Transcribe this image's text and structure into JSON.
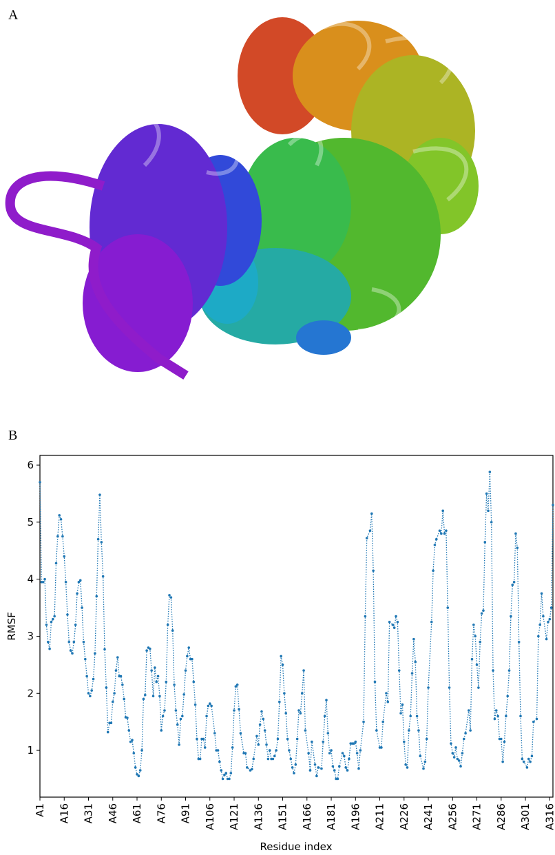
{
  "panel_a": {
    "label": "A"
  },
  "chart_data": {
    "type": "line",
    "panel_label": "B",
    "x_label": "Residue index",
    "y_label": "RMSF",
    "color": "#1f77b4",
    "line_style": "dotted",
    "markers": true,
    "grid": false,
    "xlim": [
      1,
      318
    ],
    "ylim": [
      0.18,
      6.17
    ],
    "yticks": [
      1,
      2,
      3,
      4,
      5,
      6
    ],
    "xticks": [
      {
        "value": 1,
        "label": "A1"
      },
      {
        "value": 16,
        "label": "A16"
      },
      {
        "value": 31,
        "label": "A31"
      },
      {
        "value": 46,
        "label": "A46"
      },
      {
        "value": 61,
        "label": "A61"
      },
      {
        "value": 76,
        "label": "A76"
      },
      {
        "value": 91,
        "label": "A91"
      },
      {
        "value": 106,
        "label": "A106"
      },
      {
        "value": 121,
        "label": "A121"
      },
      {
        "value": 136,
        "label": "A136"
      },
      {
        "value": 151,
        "label": "A151"
      },
      {
        "value": 166,
        "label": "A166"
      },
      {
        "value": 181,
        "label": "A181"
      },
      {
        "value": 196,
        "label": "A196"
      },
      {
        "value": 211,
        "label": "A211"
      },
      {
        "value": 226,
        "label": "A226"
      },
      {
        "value": 241,
        "label": "A241"
      },
      {
        "value": 256,
        "label": "A256"
      },
      {
        "value": 271,
        "label": "A271"
      },
      {
        "value": 286,
        "label": "A286"
      },
      {
        "value": 301,
        "label": "A301"
      },
      {
        "value": 316,
        "label": "A316"
      }
    ],
    "x": [
      1,
      2,
      3,
      4,
      5,
      6,
      7,
      8,
      9,
      10,
      11,
      12,
      13,
      14,
      15,
      16,
      17,
      18,
      19,
      20,
      21,
      22,
      23,
      24,
      25,
      26,
      27,
      28,
      29,
      30,
      31,
      32,
      33,
      34,
      35,
      36,
      37,
      38,
      39,
      40,
      41,
      42,
      43,
      44,
      45,
      46,
      47,
      48,
      49,
      50,
      51,
      52,
      53,
      54,
      55,
      56,
      57,
      58,
      59,
      60,
      61,
      62,
      63,
      64,
      65,
      66,
      67,
      68,
      69,
      70,
      71,
      72,
      73,
      74,
      75,
      76,
      77,
      78,
      79,
      80,
      81,
      82,
      83,
      84,
      85,
      86,
      87,
      88,
      89,
      90,
      91,
      92,
      93,
      94,
      95,
      96,
      97,
      98,
      99,
      100,
      101,
      102,
      103,
      104,
      105,
      106,
      107,
      109,
      110,
      111,
      112,
      113,
      114,
      115,
      116,
      117,
      118,
      119,
      120,
      121,
      122,
      123,
      124,
      125,
      127,
      128,
      129,
      131,
      132,
      133,
      135,
      136,
      137,
      138,
      139,
      140,
      141,
      142,
      143,
      144,
      145,
      146,
      147,
      148,
      149,
      150,
      151,
      152,
      153,
      154,
      155,
      156,
      157,
      158,
      159,
      160,
      161,
      162,
      163,
      164,
      165,
      167,
      168,
      169,
      171,
      172,
      173,
      175,
      176,
      177,
      178,
      179,
      180,
      181,
      182,
      183,
      184,
      185,
      186,
      188,
      189,
      190,
      191,
      192,
      193,
      194,
      195,
      196,
      197,
      198,
      199,
      201,
      202,
      203,
      205,
      206,
      207,
      208,
      209,
      211,
      212,
      213,
      215,
      216,
      217,
      219,
      220,
      221,
      222,
      223,
      224,
      225,
      226,
      227,
      228,
      229,
      230,
      231,
      232,
      233,
      234,
      235,
      236,
      238,
      239,
      240,
      241,
      243,
      244,
      245,
      246,
      248,
      249,
      250,
      251,
      252,
      253,
      254,
      255,
      256,
      257,
      258,
      259,
      260,
      261,
      262,
      263,
      264,
      266,
      267,
      268,
      269,
      270,
      271,
      272,
      273,
      274,
      275,
      276,
      277,
      278,
      279,
      280,
      281,
      282,
      283,
      284,
      285,
      286,
      287,
      288,
      289,
      290,
      291,
      292,
      293,
      294,
      295,
      296,
      297,
      298,
      299,
      300,
      302,
      303,
      304,
      305,
      306,
      308,
      309,
      310,
      311,
      312,
      314,
      315,
      316,
      317,
      318
    ],
    "values": [
      5.7,
      3.95,
      3.95,
      4.0,
      3.2,
      2.9,
      2.78,
      3.25,
      3.3,
      3.35,
      4.28,
      4.75,
      5.12,
      5.05,
      4.75,
      4.4,
      3.95,
      3.38,
      2.9,
      2.75,
      2.7,
      2.9,
      3.2,
      3.75,
      3.95,
      3.98,
      3.5,
      2.9,
      2.6,
      2.3,
      2.0,
      1.95,
      2.05,
      2.25,
      2.7,
      3.7,
      4.7,
      5.48,
      4.65,
      4.05,
      2.77,
      2.1,
      1.32,
      1.48,
      1.48,
      1.85,
      2.0,
      2.4,
      2.63,
      2.3,
      2.3,
      2.15,
      1.9,
      1.58,
      1.57,
      1.35,
      1.15,
      1.18,
      0.95,
      0.7,
      0.58,
      0.55,
      0.65,
      1.0,
      1.9,
      1.97,
      2.75,
      2.8,
      2.78,
      2.4,
      1.95,
      2.45,
      2.2,
      2.3,
      1.95,
      1.35,
      1.6,
      1.7,
      2.2,
      3.2,
      3.72,
      3.68,
      3.1,
      2.15,
      1.7,
      1.45,
      1.1,
      1.55,
      1.6,
      1.98,
      2.4,
      2.65,
      2.8,
      2.6,
      2.6,
      2.2,
      1.8,
      1.2,
      0.85,
      0.85,
      1.2,
      1.2,
      1.05,
      1.6,
      1.78,
      1.82,
      1.78,
      1.3,
      1.0,
      1.0,
      0.8,
      0.65,
      0.5,
      0.57,
      0.6,
      0.5,
      0.5,
      0.6,
      1.05,
      1.7,
      2.12,
      2.15,
      1.72,
      1.3,
      0.95,
      0.95,
      0.7,
      0.65,
      0.67,
      0.85,
      1.25,
      1.1,
      1.45,
      1.68,
      1.55,
      1.35,
      1.1,
      0.85,
      1.0,
      0.85,
      0.85,
      0.9,
      1.0,
      1.2,
      1.85,
      2.65,
      2.5,
      2.0,
      1.65,
      1.2,
      1.0,
      0.85,
      0.7,
      0.6,
      0.75,
      1.2,
      1.7,
      1.65,
      2.0,
      2.4,
      1.35,
      0.95,
      0.65,
      1.15,
      0.75,
      0.55,
      0.7,
      0.68,
      1.15,
      1.6,
      1.88,
      1.3,
      0.95,
      1.0,
      0.72,
      0.65,
      0.5,
      0.5,
      0.72,
      0.95,
      0.9,
      0.7,
      0.65,
      0.85,
      1.12,
      1.12,
      1.12,
      1.15,
      0.95,
      0.68,
      1.0,
      1.5,
      3.35,
      4.72,
      4.85,
      5.15,
      4.15,
      2.2,
      1.35,
      1.05,
      1.05,
      1.5,
      2.0,
      1.85,
      3.25,
      3.2,
      3.15,
      3.35,
      3.25,
      2.4,
      1.65,
      1.8,
      1.15,
      0.75,
      0.7,
      1.35,
      1.6,
      2.35,
      2.95,
      2.55,
      1.6,
      1.35,
      0.9,
      0.68,
      0.8,
      1.2,
      2.1,
      3.25,
      4.15,
      4.6,
      4.7,
      4.85,
      4.8,
      5.2,
      4.8,
      4.85,
      3.5,
      2.1,
      1.12,
      0.95,
      0.88,
      1.05,
      0.85,
      0.82,
      0.72,
      0.95,
      1.2,
      1.3,
      1.7,
      1.35,
      2.6,
      3.2,
      3.0,
      2.5,
      2.1,
      2.9,
      3.4,
      3.45,
      4.65,
      5.5,
      5.2,
      5.88,
      5.0,
      2.4,
      1.55,
      1.7,
      1.6,
      1.2,
      1.2,
      0.8,
      1.15,
      1.6,
      1.95,
      2.4,
      3.35,
      3.9,
      3.95,
      4.8,
      4.55,
      2.9,
      1.6,
      0.85,
      0.8,
      0.7,
      0.85,
      0.8,
      0.9,
      1.5,
      1.55,
      3.0,
      3.2,
      3.75,
      3.35,
      2.95,
      3.25,
      3.3,
      3.5,
      5.3
    ]
  }
}
